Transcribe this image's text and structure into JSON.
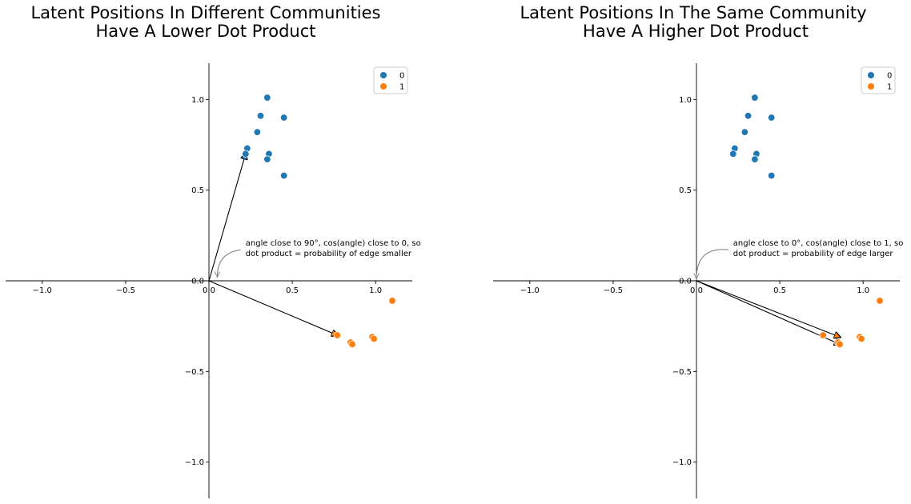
{
  "colors": {
    "community_0": "#1f77b4",
    "community_1": "#ff7f0e",
    "arrow": "#000000",
    "annotation_arrow": "#8a8a8a"
  },
  "chart_data": [
    {
      "type": "scatter",
      "title_lines": [
        "Latent Positions In Different Communities",
        "Have A Lower Dot Product"
      ],
      "xlim": [
        -1.22,
        1.22
      ],
      "ylim": [
        -1.2,
        1.2
      ],
      "xticks": [
        -1.0,
        -0.5,
        0.0,
        0.5,
        1.0
      ],
      "yticks": [
        -1.0,
        -0.5,
        0.0,
        0.5,
        1.0
      ],
      "xtick_labels": [
        "−1.0",
        "−0.5",
        "0.0",
        "0.5",
        "1.0"
      ],
      "ytick_labels": [
        "−1.0",
        "−0.5",
        "0.0",
        "0.5",
        "1.0"
      ],
      "grid": false,
      "legend_position": "top-right",
      "legend": [
        "0",
        "1"
      ],
      "series": [
        {
          "name": "0",
          "points": [
            [
              0.35,
              1.01
            ],
            [
              0.31,
              0.91
            ],
            [
              0.45,
              0.9
            ],
            [
              0.29,
              0.82
            ],
            [
              0.23,
              0.73
            ],
            [
              0.22,
              0.7
            ],
            [
              0.36,
              0.7
            ],
            [
              0.35,
              0.67
            ],
            [
              0.45,
              0.58
            ]
          ]
        },
        {
          "name": "1",
          "points": [
            [
              1.1,
              -0.11
            ],
            [
              0.98,
              -0.31
            ],
            [
              0.99,
              -0.32
            ],
            [
              0.77,
              -0.3
            ],
            [
              0.85,
              -0.34
            ],
            [
              0.86,
              -0.35
            ]
          ]
        }
      ],
      "vectors": [
        [
          0.22,
          0.7
        ],
        [
          0.77,
          -0.3
        ]
      ],
      "annotation": {
        "lines": [
          "angle close to 90°, cos(angle) close to 0, so",
          "dot product = probability of edge smaller"
        ],
        "text_at": [
          0.22,
          0.18
        ],
        "points_to": [
          0.05,
          0.01
        ]
      }
    },
    {
      "type": "scatter",
      "title_lines": [
        "Latent Positions In The Same Community",
        "Have A Higher Dot Product"
      ],
      "xlim": [
        -1.22,
        1.22
      ],
      "ylim": [
        -1.2,
        1.2
      ],
      "xticks": [
        -1.0,
        -0.5,
        0.0,
        0.5,
        1.0
      ],
      "yticks": [
        -1.0,
        -0.5,
        0.0,
        0.5,
        1.0
      ],
      "xtick_labels": [
        "−1.0",
        "−0.5",
        "0.0",
        "0.5",
        "1.0"
      ],
      "ytick_labels": [
        "−1.0",
        "−0.5",
        "0.0",
        "0.5",
        "1.0"
      ],
      "grid": false,
      "legend_position": "top-right",
      "legend": [
        "0",
        "1"
      ],
      "series": [
        {
          "name": "0",
          "points": [
            [
              0.35,
              1.01
            ],
            [
              0.31,
              0.91
            ],
            [
              0.45,
              0.9
            ],
            [
              0.29,
              0.82
            ],
            [
              0.23,
              0.73
            ],
            [
              0.22,
              0.7
            ],
            [
              0.36,
              0.7
            ],
            [
              0.35,
              0.67
            ],
            [
              0.45,
              0.58
            ]
          ]
        },
        {
          "name": "1",
          "points": [
            [
              1.1,
              -0.11
            ],
            [
              0.98,
              -0.31
            ],
            [
              0.99,
              -0.32
            ],
            [
              0.76,
              -0.3
            ],
            [
              0.85,
              -0.34
            ],
            [
              0.86,
              -0.35
            ]
          ]
        }
      ],
      "vectors": [
        [
          0.86,
          -0.31
        ],
        [
          0.86,
          -0.35
        ]
      ],
      "annotation": {
        "lines": [
          "angle close to 0°, cos(angle) close to 1, so",
          "dot product = probability of edge larger"
        ],
        "text_at": [
          0.22,
          0.18
        ],
        "points_to": [
          0.0,
          0.0
        ]
      }
    }
  ]
}
